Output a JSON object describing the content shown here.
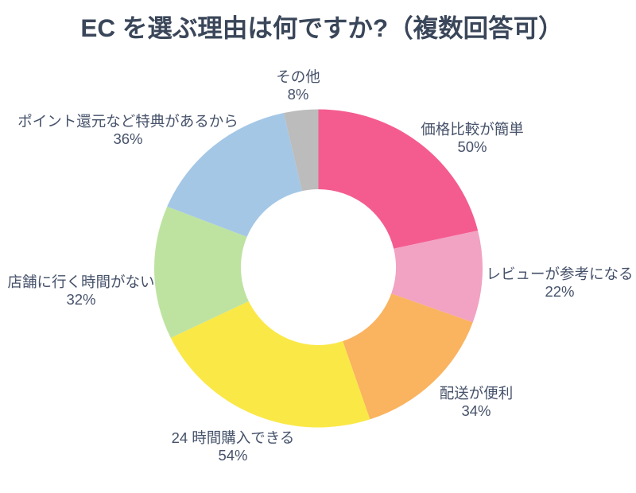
{
  "chart_data": {
    "type": "donut",
    "title": "EC を選ぶ理由は何ですか?（複数回答可）",
    "series": [
      {
        "label": "価格比較が簡単",
        "value": 50,
        "pct": "50%",
        "color": "#F45C90"
      },
      {
        "label": "レビューが参考になる",
        "value": 22,
        "pct": "22%",
        "color": "#F2A2C2"
      },
      {
        "label": "配送が便利",
        "value": 34,
        "pct": "34%",
        "color": "#FAB35F"
      },
      {
        "label": "24 時間購入できる",
        "value": 54,
        "pct": "54%",
        "color": "#FAE847"
      },
      {
        "label": "店舗に行く時間がない",
        "value": 32,
        "pct": "32%",
        "color": "#BEE3A1"
      },
      {
        "label": "ポイント還元など特典があるから",
        "value": 36,
        "pct": "36%",
        "color": "#A4C7E6"
      },
      {
        "label": "その他",
        "value": 8,
        "pct": "8%",
        "color": "#BCBCBC"
      }
    ],
    "layout": {
      "start_angle_deg": 0,
      "direction": "clockwise",
      "inner_radius_ratio": 0.478,
      "labels": "outside",
      "legend": "none",
      "background": "#FFFFFF",
      "title_color": "#3A4659",
      "label_color": "#46526A"
    }
  }
}
